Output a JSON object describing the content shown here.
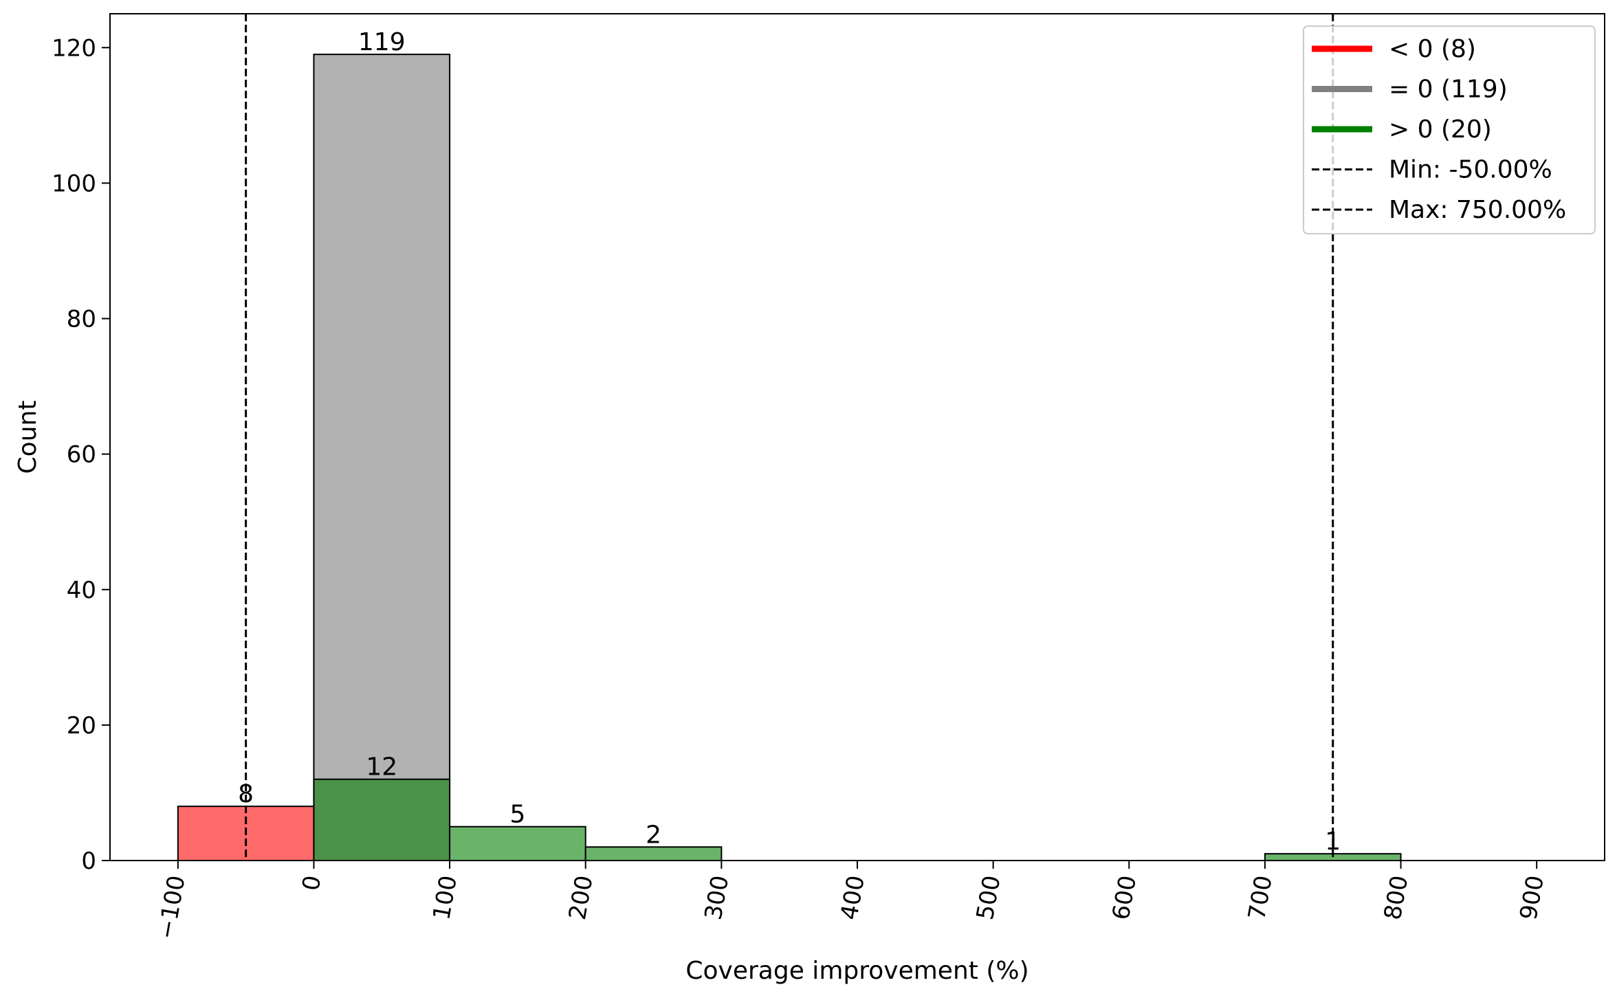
{
  "chart_data": {
    "type": "bar",
    "title": "",
    "xlabel": "Coverage improvement (%)",
    "ylabel": "Count",
    "xlim": [
      -150,
      950
    ],
    "ylim": [
      0,
      125
    ],
    "xticks": [
      -100,
      0,
      100,
      200,
      300,
      400,
      500,
      600,
      700,
      800,
      900
    ],
    "xtick_labels": [
      "−100",
      "0",
      "100",
      "200",
      "300",
      "400",
      "500",
      "600",
      "700",
      "800",
      "900"
    ],
    "yticks": [
      0,
      20,
      40,
      60,
      80,
      100,
      120
    ],
    "ytick_labels": [
      "0",
      "20",
      "40",
      "60",
      "80",
      "100",
      "120"
    ],
    "xtick_rotation_deg": 80,
    "grid": false,
    "bin_width": 100,
    "series": [
      {
        "name": "< 0 (8)",
        "color": "#ff0000",
        "bins": [
          {
            "start": -100,
            "end": 0,
            "count": 8,
            "label": "8"
          }
        ]
      },
      {
        "name": "= 0 (119)",
        "color": "#808080",
        "bins": [
          {
            "start": 0,
            "end": 100,
            "count": 119,
            "label": "119"
          }
        ]
      },
      {
        "name": "> 0 (20)",
        "color": "#008000",
        "bins": [
          {
            "start": 0,
            "end": 100,
            "count": 12,
            "label": "12"
          },
          {
            "start": 100,
            "end": 200,
            "count": 5,
            "label": "5"
          },
          {
            "start": 200,
            "end": 300,
            "count": 2,
            "label": "2"
          },
          {
            "start": 700,
            "end": 800,
            "count": 1,
            "label": "1"
          }
        ]
      }
    ],
    "reference_lines": [
      {
        "name": "Min: -50.00%",
        "x": -50,
        "style": "dashed",
        "color": "#000000"
      },
      {
        "name": "Max: 750.00%",
        "x": 750,
        "style": "dashed",
        "color": "#000000"
      }
    ],
    "legend": {
      "location": "top-right",
      "entries": [
        "< 0 (8)",
        "= 0 (119)",
        "> 0 (20)",
        "Min: -50.00%",
        "Max: 750.00%"
      ]
    }
  }
}
